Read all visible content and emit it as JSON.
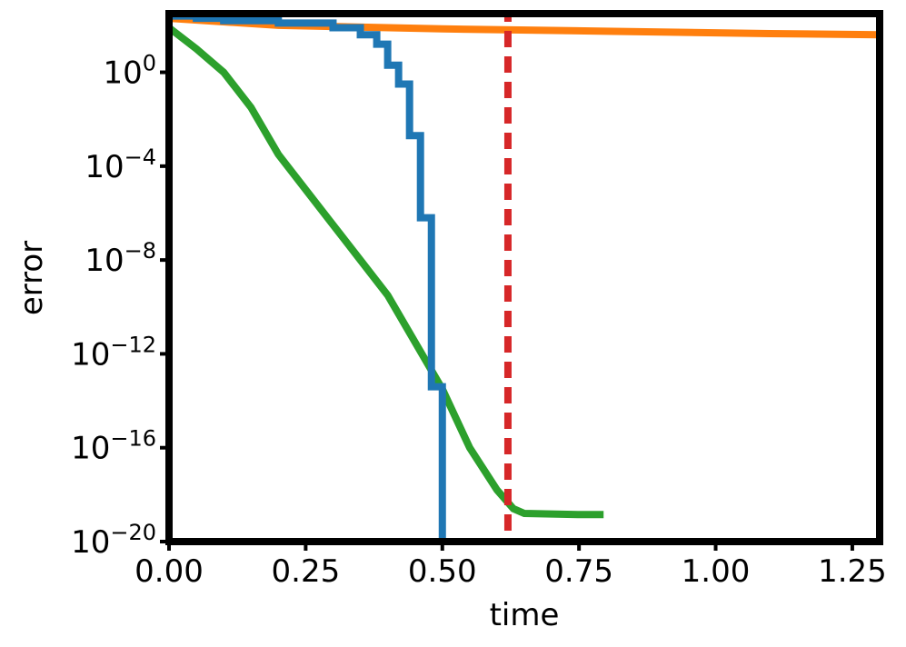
{
  "chart_data": {
    "type": "line",
    "xlabel": "time",
    "ylabel": "error",
    "xlim": [
      0.0,
      1.3
    ],
    "ylim_log10": [
      -20,
      2.5
    ],
    "yscale": "log",
    "grid": false,
    "x_ticks": [
      {
        "value": 0.0,
        "label": "0.00"
      },
      {
        "value": 0.25,
        "label": "0.25"
      },
      {
        "value": 0.5,
        "label": "0.50"
      },
      {
        "value": 0.75,
        "label": "0.75"
      },
      {
        "value": 1.0,
        "label": "1.00"
      },
      {
        "value": 1.25,
        "label": "1.25"
      }
    ],
    "y_ticks": [
      {
        "exp": 0,
        "base": "10",
        "sup": "0"
      },
      {
        "exp": -4,
        "base": "10",
        "sup": "−4"
      },
      {
        "exp": -8,
        "base": "10",
        "sup": "−8"
      },
      {
        "exp": -12,
        "base": "10",
        "sup": "−12"
      },
      {
        "exp": -16,
        "base": "10",
        "sup": "−16"
      },
      {
        "exp": -20,
        "base": "10",
        "sup": "−20"
      }
    ],
    "series": [
      {
        "color": "#ff7f0e",
        "style": "solid",
        "points_log10": [
          [
            0.0,
            2.3
          ],
          [
            0.2,
            2.0
          ],
          [
            0.5,
            1.85
          ],
          [
            0.8,
            1.75
          ],
          [
            1.1,
            1.65
          ],
          [
            1.3,
            1.6
          ]
        ]
      },
      {
        "color": "#2ca02c",
        "style": "solid",
        "points_log10": [
          [
            0.0,
            1.9
          ],
          [
            0.05,
            1.0
          ],
          [
            0.1,
            0.0
          ],
          [
            0.15,
            -1.5
          ],
          [
            0.2,
            -3.5
          ],
          [
            0.25,
            -5.0
          ],
          [
            0.3,
            -6.5
          ],
          [
            0.35,
            -8.0
          ],
          [
            0.4,
            -9.5
          ],
          [
            0.45,
            -11.5
          ],
          [
            0.5,
            -13.5
          ],
          [
            0.55,
            -16.0
          ],
          [
            0.6,
            -17.8
          ],
          [
            0.63,
            -18.6
          ],
          [
            0.65,
            -18.8
          ],
          [
            0.75,
            -18.85
          ],
          [
            0.795,
            -18.85
          ]
        ]
      },
      {
        "color": "#1f77b4",
        "style": "steps",
        "points_log10": [
          [
            0.0,
            2.4
          ],
          [
            0.05,
            2.3
          ],
          [
            0.1,
            2.2
          ],
          [
            0.2,
            2.1
          ],
          [
            0.3,
            1.9
          ],
          [
            0.35,
            1.6
          ],
          [
            0.38,
            1.2
          ],
          [
            0.4,
            0.3
          ],
          [
            0.42,
            -0.5
          ],
          [
            0.44,
            -2.7
          ],
          [
            0.46,
            -6.2
          ],
          [
            0.48,
            -13.4
          ],
          [
            0.5,
            -20.0
          ]
        ]
      },
      {
        "color": "#d62728",
        "style": "dashed",
        "points_log10": [
          [
            0.0,
            2.5
          ],
          [
            0.62,
            2.5
          ],
          [
            0.62,
            -20.0
          ]
        ]
      }
    ]
  }
}
